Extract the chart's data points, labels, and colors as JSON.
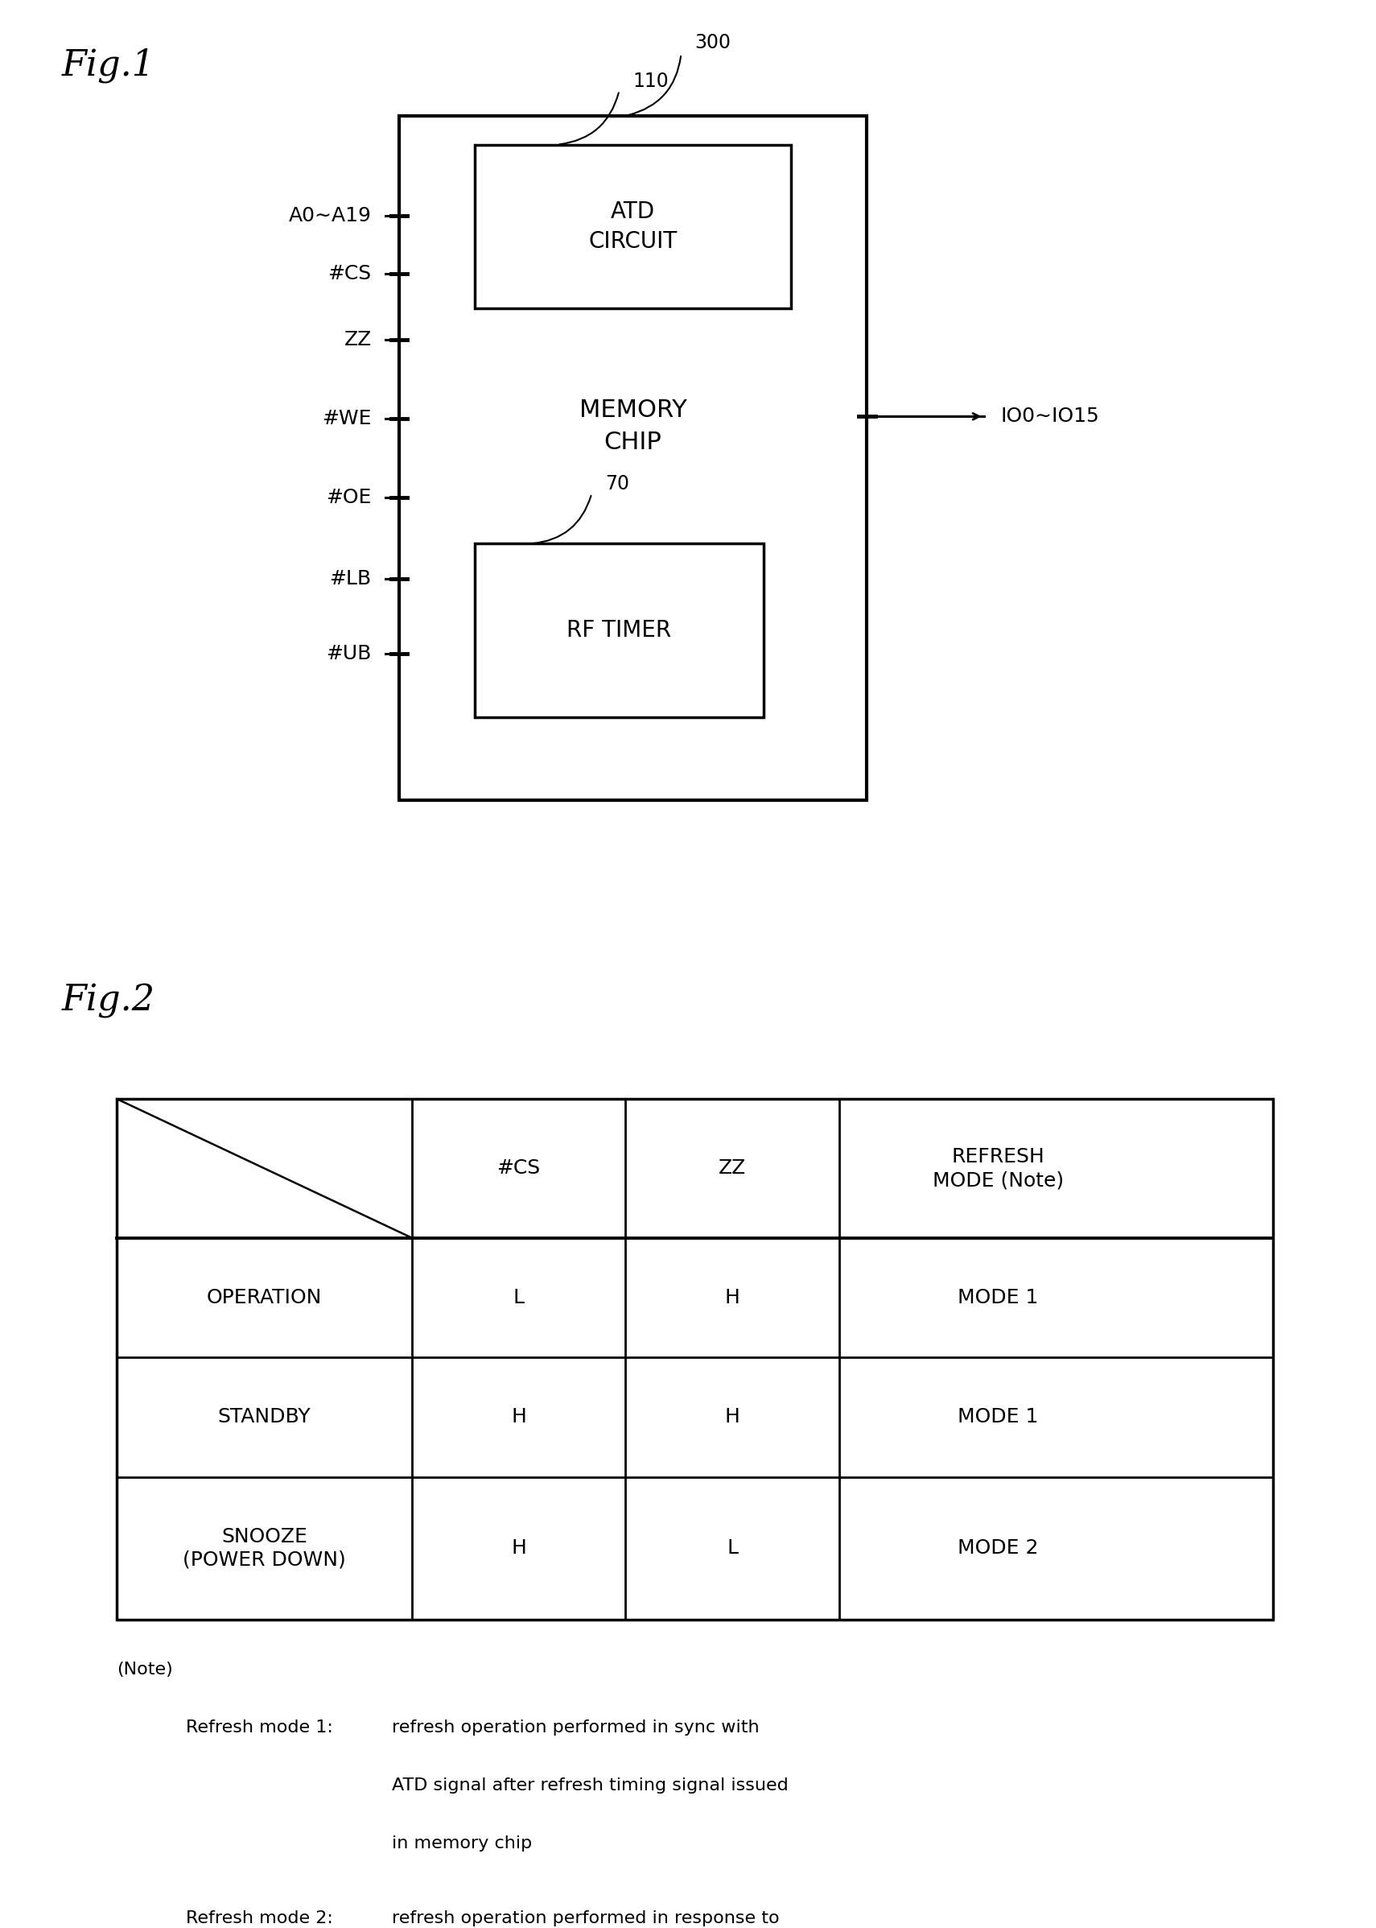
{
  "fig1_title": "Fig.1",
  "fig2_title": "Fig.2",
  "bg_color": "#ffffff",
  "text_color": "#000000",
  "fig1_title_fontsize": 32,
  "fig2_title_fontsize": 32,
  "chip_label_fontsize": 22,
  "atd_fontsize": 20,
  "rf_fontsize": 20,
  "label_300": "300",
  "label_110": "110",
  "label_70": "70",
  "label_fontsize": 17,
  "left_pins": [
    "A0∼A19",
    "#CS",
    "ZZ",
    "#WE",
    "#OE",
    "#LB",
    "#UB"
  ],
  "right_pin_label": "IO0∼IO15",
  "pin_fontsize": 18,
  "table_headers": [
    "",
    "#CS",
    "ZZ",
    "REFRESH\nMODE (Note)"
  ],
  "table_rows": [
    [
      "OPERATION",
      "L",
      "H",
      "MODE 1"
    ],
    [
      "STANDBY",
      "H",
      "H",
      "MODE 1"
    ],
    [
      "SNOOZE\n(POWER DOWN)",
      "H",
      "L",
      "MODE 2"
    ]
  ],
  "table_fontsize": 18,
  "note_title": "(Note)",
  "note_mode1_label": "Refresh mode 1:",
  "note_mode1_text": "refresh operation performed in sync with\nATD signal after refresh timing signal issued\nin memory chip",
  "note_mode2_label": "Refresh mode 2:",
  "note_mode2_text": "refresh operation performed in response to\ngeneration of refresh timing signal in\nmemory chip (address input not required)",
  "note_fontsize": 16
}
